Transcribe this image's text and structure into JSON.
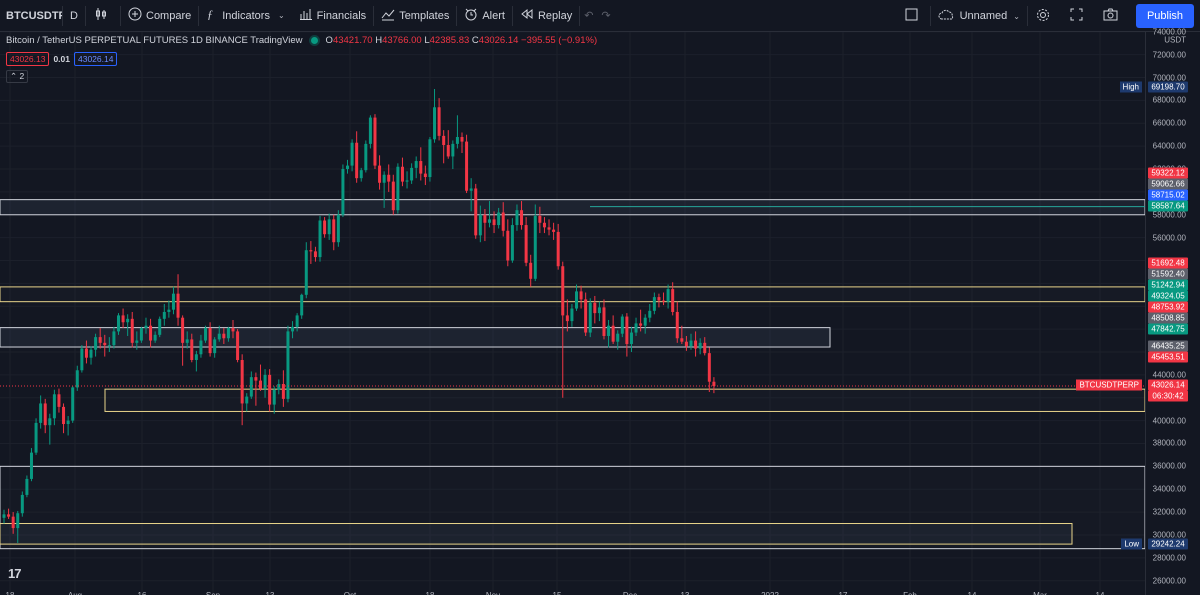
{
  "toolbar": {
    "symbol": "BTCUSDTPERP",
    "interval": "D",
    "compare": "Compare",
    "indicators": "Indicators",
    "financials": "Financials",
    "templates": "Templates",
    "alert": "Alert",
    "replay": "Replay",
    "layout_name": "Unnamed",
    "publish": "Publish"
  },
  "legend": {
    "title": "Bitcoin / TetherUS PERPETUAL FUTURES 1D BINANCE TradingView",
    "o_label": "O",
    "o": "43421.70",
    "h_label": "H",
    "h": "43766.00",
    "l_label": "L",
    "l": "42385.83",
    "c_label": "C",
    "c": "43026.14",
    "change": "−395.55 (−0.91%)",
    "sell_price": "43026.13",
    "spread": "0.01",
    "buy_price": "43026.14",
    "collapse": "2"
  },
  "price_axis": {
    "currency": "USDT",
    "ticks": [
      "74000.00",
      "72000.00",
      "70000.00",
      "68000.00",
      "66000.00",
      "64000.00",
      "62000.00",
      "60000.00",
      "58000.00",
      "56000.00",
      "54000.00",
      "52000.00",
      "50000.00",
      "48000.00",
      "46000.00",
      "44000.00",
      "42000.00",
      "40000.00",
      "38000.00",
      "36000.00",
      "34000.00",
      "32000.00",
      "30000.00",
      "28000.00",
      "26000.00"
    ],
    "labels": [
      {
        "text": "69198.70",
        "tag": "High",
        "color": "#1e3a6e"
      },
      {
        "text": "59322.12",
        "color": "#f23645"
      },
      {
        "text": "59062.66",
        "color": "#5d606b"
      },
      {
        "text": "58715.02",
        "color": "#2962ff"
      },
      {
        "text": "58587.64",
        "color": "#089981"
      },
      {
        "text": "51692.48",
        "color": "#f23645"
      },
      {
        "text": "51592.40",
        "color": "#5d606b"
      },
      {
        "text": "51242.94",
        "color": "#089981"
      },
      {
        "text": "49324.05",
        "color": "#089981"
      },
      {
        "text": "48753.92",
        "color": "#f23645"
      },
      {
        "text": "48508.85",
        "color": "#5d606b"
      },
      {
        "text": "47842.75",
        "color": "#089981"
      },
      {
        "text": "46435.25",
        "color": "#5d606b"
      },
      {
        "text": "45453.51",
        "color": "#f23645"
      },
      {
        "text": "43026.14",
        "tag": "BTCUSDTPERP",
        "color": "#f23645"
      },
      {
        "text": "06:30:42",
        "color": "#f23645"
      },
      {
        "text": "29242.24",
        "tag": "Low",
        "color": "#1e3a6e"
      }
    ]
  },
  "time_axis": [
    "18",
    "Aug",
    "16",
    "Sep",
    "13",
    "Oct",
    "18",
    "Nov",
    "15",
    "Dec",
    "13",
    "2022",
    "17",
    "Feb",
    "14",
    "Mar",
    "14"
  ],
  "chart_data": {
    "type": "candlestick",
    "up_color": "#089981",
    "down_color": "#f23645",
    "ylim": [
      26000,
      74000
    ],
    "ohlc": [
      [
        31500,
        32200,
        31000,
        31800
      ],
      [
        31800,
        32300,
        31400,
        31600
      ],
      [
        31600,
        32000,
        30100,
        30600
      ],
      [
        30600,
        32100,
        29300,
        31900
      ],
      [
        31900,
        33800,
        31600,
        33500
      ],
      [
        33500,
        35200,
        33300,
        34900
      ],
      [
        34900,
        37600,
        34700,
        37200
      ],
      [
        37200,
        40200,
        37000,
        39800
      ],
      [
        39800,
        42200,
        39300,
        41500
      ],
      [
        41500,
        41900,
        38900,
        39600
      ],
      [
        39600,
        40600,
        37900,
        40200
      ],
      [
        40200,
        42700,
        39600,
        42300
      ],
      [
        42300,
        42800,
        40700,
        41200
      ],
      [
        41200,
        41500,
        38900,
        39700
      ],
      [
        39700,
        40400,
        38700,
        40000
      ],
      [
        40000,
        43000,
        39800,
        42900
      ],
      [
        42900,
        44800,
        42600,
        44400
      ],
      [
        44400,
        46600,
        44200,
        46300
      ],
      [
        46300,
        47000,
        45000,
        45500
      ],
      [
        45500,
        46500,
        44900,
        46200
      ],
      [
        46200,
        47600,
        45600,
        47300
      ],
      [
        47300,
        48100,
        46300,
        46800
      ],
      [
        46800,
        47500,
        45600,
        46600
      ],
      [
        46600,
        47300,
        46000,
        46600
      ],
      [
        46600,
        48200,
        46300,
        47800
      ],
      [
        47800,
        49400,
        47500,
        49200
      ],
      [
        49200,
        49800,
        48100,
        48600
      ],
      [
        48600,
        49300,
        47400,
        48900
      ],
      [
        48900,
        49500,
        46400,
        46800
      ],
      [
        46800,
        47800,
        46200,
        47000
      ],
      [
        47000,
        48200,
        46800,
        48100
      ],
      [
        48100,
        49000,
        47600,
        48300
      ],
      [
        48300,
        48900,
        46400,
        47000
      ],
      [
        47000,
        47800,
        46800,
        47500
      ],
      [
        47500,
        49100,
        47300,
        48900
      ],
      [
        48900,
        50200,
        48300,
        49500
      ],
      [
        49500,
        50500,
        49000,
        49700
      ],
      [
        49700,
        51700,
        49300,
        51100
      ],
      [
        51100,
        52800,
        48300,
        49000
      ],
      [
        49000,
        49200,
        44800,
        46800
      ],
      [
        46800,
        47800,
        46300,
        47100
      ],
      [
        47100,
        47600,
        45100,
        45300
      ],
      [
        45300,
        46100,
        44300,
        45800
      ],
      [
        45800,
        47500,
        45500,
        47000
      ],
      [
        47000,
        48300,
        46800,
        48100
      ],
      [
        48100,
        48600,
        45600,
        45900
      ],
      [
        45900,
        47300,
        45500,
        47100
      ],
      [
        47100,
        48300,
        46900,
        47600
      ],
      [
        47600,
        48100,
        46700,
        47200
      ],
      [
        47200,
        48200,
        46900,
        48100
      ],
      [
        48100,
        48800,
        47200,
        47800
      ],
      [
        47800,
        48000,
        45100,
        45300
      ],
      [
        45300,
        45800,
        39600,
        41500
      ],
      [
        41500,
        42400,
        40800,
        42100
      ],
      [
        42100,
        44300,
        41900,
        43800
      ],
      [
        43800,
        44200,
        41300,
        43500
      ],
      [
        43500,
        44900,
        42600,
        42800
      ],
      [
        42800,
        44500,
        42000,
        44000
      ],
      [
        44000,
        44500,
        40800,
        41400
      ],
      [
        41400,
        43000,
        40600,
        42700
      ],
      [
        42700,
        43600,
        42300,
        43200
      ],
      [
        43200,
        44400,
        41200,
        41900
      ],
      [
        41900,
        48300,
        41600,
        47800
      ],
      [
        47800,
        48700,
        47200,
        48200
      ],
      [
        48200,
        49400,
        47800,
        49200
      ],
      [
        49200,
        51100,
        48900,
        51000
      ],
      [
        51000,
        55600,
        50700,
        54900
      ],
      [
        54900,
        55700,
        53700,
        54800
      ],
      [
        54800,
        55200,
        53900,
        54300
      ],
      [
        54300,
        57900,
        53900,
        57500
      ],
      [
        57500,
        57800,
        56000,
        56300
      ],
      [
        56300,
        58100,
        55800,
        57600
      ],
      [
        57600,
        58000,
        54900,
        55600
      ],
      [
        55600,
        58400,
        55200,
        58000
      ],
      [
        58000,
        62400,
        57800,
        62000
      ],
      [
        62000,
        62800,
        61600,
        62300
      ],
      [
        62300,
        64600,
        61800,
        64300
      ],
      [
        64300,
        65300,
        60800,
        61200
      ],
      [
        61200,
        62100,
        60900,
        61900
      ],
      [
        61900,
        64500,
        61700,
        64200
      ],
      [
        64200,
        66700,
        63800,
        66500
      ],
      [
        66500,
        66800,
        62000,
        62300
      ],
      [
        62300,
        63200,
        60200,
        60800
      ],
      [
        60800,
        61800,
        58600,
        61500
      ],
      [
        61500,
        62400,
        60000,
        60900
      ],
      [
        60900,
        61500,
        58000,
        58400
      ],
      [
        58400,
        62500,
        58100,
        62200
      ],
      [
        62200,
        63000,
        60500,
        60900
      ],
      [
        60900,
        61800,
        60300,
        61000
      ],
      [
        61000,
        62500,
        60700,
        62100
      ],
      [
        62100,
        63100,
        61200,
        62700
      ],
      [
        62700,
        63900,
        61000,
        61600
      ],
      [
        61600,
        62300,
        60600,
        61300
      ],
      [
        61300,
        64800,
        60900,
        64600
      ],
      [
        64600,
        69000,
        64300,
        67400
      ],
      [
        67400,
        68200,
        64500,
        64900
      ],
      [
        64900,
        65400,
        62500,
        64100
      ],
      [
        64100,
        65400,
        62900,
        63100
      ],
      [
        63100,
        64500,
        62000,
        64200
      ],
      [
        64200,
        66700,
        63800,
        64800
      ],
      [
        64800,
        65200,
        63400,
        64400
      ],
      [
        64400,
        65000,
        59900,
        60100
      ],
      [
        60100,
        61200,
        58300,
        60300
      ],
      [
        60300,
        60700,
        55900,
        56200
      ],
      [
        56200,
        58800,
        55600,
        58000
      ],
      [
        58000,
        58500,
        55700,
        57300
      ],
      [
        57300,
        59200,
        56900,
        57600
      ],
      [
        57600,
        58300,
        56400,
        57100
      ],
      [
        57100,
        58600,
        56800,
        58200
      ],
      [
        58200,
        59100,
        56100,
        56600
      ],
      [
        56600,
        57600,
        53500,
        54000
      ],
      [
        54000,
        57700,
        53800,
        57100
      ],
      [
        57100,
        58900,
        56600,
        58400
      ],
      [
        58400,
        59200,
        56700,
        57100
      ],
      [
        57100,
        57800,
        53500,
        53800
      ],
      [
        53800,
        54500,
        51700,
        52400
      ],
      [
        52400,
        58900,
        52200,
        57900
      ],
      [
        57900,
        58700,
        56400,
        57300
      ],
      [
        57300,
        57800,
        56400,
        56900
      ],
      [
        56900,
        57600,
        56200,
        56700
      ],
      [
        56700,
        57300,
        55800,
        56500
      ],
      [
        56500,
        57200,
        53200,
        53500
      ],
      [
        53500,
        53900,
        42000,
        49200
      ],
      [
        49200,
        50600,
        47800,
        48700
      ],
      [
        48700,
        50200,
        48200,
        49800
      ],
      [
        49800,
        51900,
        49600,
        51300
      ],
      [
        51300,
        51800,
        49800,
        50600
      ],
      [
        50600,
        51200,
        47400,
        47700
      ],
      [
        47700,
        50700,
        47300,
        50300
      ],
      [
        50300,
        50900,
        48500,
        49400
      ],
      [
        49400,
        50400,
        48700,
        49900
      ],
      [
        49900,
        50600,
        47100,
        47400
      ],
      [
        47400,
        48800,
        46400,
        48300
      ],
      [
        48300,
        49200,
        46700,
        46900
      ],
      [
        46900,
        47900,
        46200,
        47600
      ],
      [
        47600,
        49300,
        47300,
        49100
      ],
      [
        49100,
        49400,
        45600,
        46700
      ],
      [
        46700,
        48200,
        46000,
        47700
      ],
      [
        47700,
        49000,
        47400,
        48500
      ],
      [
        48500,
        49700,
        47800,
        48300
      ],
      [
        48300,
        49300,
        47600,
        49000
      ],
      [
        49000,
        50200,
        48600,
        49600
      ],
      [
        49600,
        51200,
        49300,
        50800
      ],
      [
        50800,
        51100,
        49900,
        50500
      ],
      [
        50500,
        51200,
        50100,
        50400
      ],
      [
        50400,
        51900,
        49800,
        51500
      ],
      [
        51500,
        52100,
        49200,
        49500
      ],
      [
        49500,
        50400,
        46800,
        47200
      ],
      [
        47200,
        48300,
        46700,
        46900
      ],
      [
        46900,
        47400,
        46100,
        46500
      ],
      [
        46500,
        47600,
        46200,
        47000
      ],
      [
        47000,
        47800,
        45600,
        46300
      ],
      [
        46300,
        47200,
        45800,
        46800
      ],
      [
        46800,
        47300,
        45700,
        45900
      ],
      [
        45900,
        46400,
        42500,
        43400
      ],
      [
        43400,
        43800,
        42400,
        43026
      ]
    ]
  }
}
